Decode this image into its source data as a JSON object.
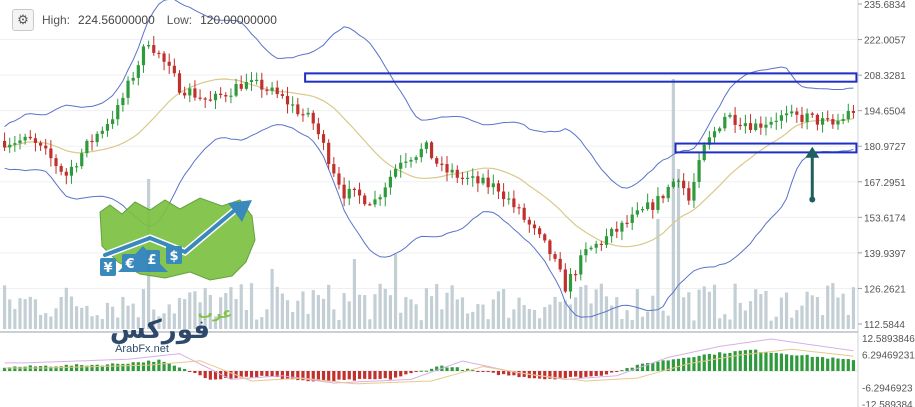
{
  "header": {
    "high_label": "High:",
    "high_value": "224.56000000",
    "low_label": "Low:",
    "low_value": "120.00000000",
    "settings_icon": "gear-icon"
  },
  "watermark": {
    "brand_arabic_1": "عرب",
    "brand_arabic_2": "فوركس",
    "site": "ArabFx.net",
    "currency_symbols": [
      "¥",
      "€",
      "£",
      "$"
    ]
  },
  "colors": {
    "bull": "#2e9a3c",
    "bear": "#c0302c",
    "band": "#5b73c9",
    "mid": "#d9c98a",
    "volume": "#b9c7cc",
    "box": "#1f2fc4",
    "arrow": "#1f5f5f",
    "sig1": "#d9b0e6",
    "sig2": "#e8c98a"
  },
  "chart_data": [
    {
      "type": "candlestick",
      "price_axis_ticks": [
        "235.6834",
        "222.0057",
        "208.3281",
        "194.6504",
        "180.9727",
        "167.2951",
        "153.6174",
        "139.9397",
        "126.2621",
        "112.5844"
      ],
      "ylim": [
        112.5844,
        235.6834
      ],
      "high": 224.56,
      "low": 120.0,
      "indicators": [
        "bollinger-upper",
        "bollinger-middle",
        "bollinger-lower",
        "volume"
      ],
      "trend_path": [
        [
          0,
          183
        ],
        [
          5,
          183
        ],
        [
          8,
          178
        ],
        [
          12,
          170
        ],
        [
          16,
          181
        ],
        [
          22,
          195
        ],
        [
          28,
          222
        ],
        [
          34,
          204
        ],
        [
          40,
          198
        ],
        [
          46,
          205
        ],
        [
          50,
          204
        ],
        [
          55,
          198
        ],
        [
          60,
          190
        ],
        [
          66,
          163
        ],
        [
          72,
          160
        ],
        [
          77,
          176
        ],
        [
          82,
          180
        ],
        [
          85,
          172
        ],
        [
          90,
          168
        ],
        [
          96,
          165
        ],
        [
          101,
          153
        ],
        [
          106,
          140
        ],
        [
          109,
          127
        ],
        [
          113,
          140
        ],
        [
          120,
          150
        ],
        [
          127,
          160
        ],
        [
          131,
          170
        ],
        [
          133,
          160
        ],
        [
          136,
          180
        ],
        [
          140,
          193
        ],
        [
          146,
          189
        ],
        [
          150,
          192
        ],
        [
          156,
          192
        ],
        [
          161,
          189
        ],
        [
          165,
          195
        ]
      ],
      "annotations": [
        {
          "kind": "rectangle",
          "price_top": 209.0,
          "price_bottom": 205.8,
          "from_candle": 59,
          "to_candle": 165
        },
        {
          "kind": "rectangle",
          "price_top": 182.0,
          "price_bottom": 178.6,
          "from_candle": 131,
          "to_candle": 165
        },
        {
          "kind": "arrow-up",
          "candle": 157,
          "price_from": 160.5,
          "price_to": 180.0
        }
      ]
    },
    {
      "type": "bar",
      "name": "oscillator",
      "axis_ticks": [
        "12.5893846",
        "6.29469231",
        "-6.2946923",
        "-12.589384"
      ],
      "ylim": [
        -12.589384,
        12.5893846
      ],
      "segments": [
        [
          0,
          1.5
        ],
        [
          20,
          2.5
        ],
        [
          30,
          4
        ],
        [
          40,
          -3
        ],
        [
          50,
          -2
        ],
        [
          60,
          -4
        ],
        [
          75,
          -3
        ],
        [
          85,
          2
        ],
        [
          95,
          -1
        ],
        [
          105,
          -3
        ],
        [
          115,
          -2
        ],
        [
          125,
          3
        ],
        [
          135,
          6
        ],
        [
          145,
          8
        ],
        [
          155,
          6
        ],
        [
          165,
          4
        ]
      ]
    }
  ]
}
